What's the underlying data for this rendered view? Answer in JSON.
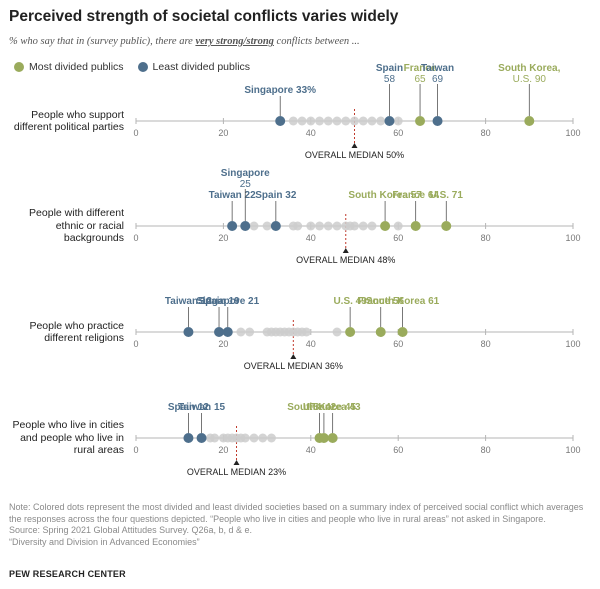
{
  "header": {
    "title": "Perceived strength of societal conflicts varies widely",
    "subtitle_pre": "% who say that in (survey public), there are ",
    "subtitle_em": "very strong/strong",
    "subtitle_post": " conflicts between ..."
  },
  "legend": {
    "most_label": "Most divided publics",
    "least_label": "Least divided publics"
  },
  "colors": {
    "most": "#9aab5c",
    "least": "#4e6f8c",
    "other": "#cccccc",
    "median_line": "#c0392b",
    "axis": "#999999"
  },
  "chart_data": {
    "type": "scatter",
    "xlim": [
      0,
      100
    ],
    "ticks": [
      0,
      20,
      40,
      60,
      80,
      100
    ],
    "median_label_prefix": "OVERALL MEDIAN",
    "rows": [
      {
        "label_lines": [
          "People who support",
          "different political parties"
        ],
        "median": 50,
        "median_label": "OVERALL MEDIAN 50%",
        "other": [
          33,
          36,
          38,
          40,
          42,
          44,
          46,
          48,
          50,
          52,
          54,
          56,
          60
        ],
        "highlights": [
          {
            "name": "Singapore",
            "value": 33,
            "group": "least",
            "label": "Singapore 33%"
          },
          {
            "name": "Spain",
            "value": 58,
            "group": "least",
            "label": "Spain",
            "label2": "58"
          },
          {
            "name": "France",
            "value": 65,
            "group": "most",
            "label": "France",
            "label2": "65"
          },
          {
            "name": "Taiwan",
            "value": 69,
            "group": "least",
            "label": "Taiwan",
            "label2": "69"
          },
          {
            "name": "South Korea",
            "value": 90,
            "group": "most",
            "label": "South Korea,",
            "label2": "U.S. 90"
          }
        ]
      },
      {
        "label_lines": [
          "People with different",
          "ethnic or racial",
          "backgrounds"
        ],
        "median": 48,
        "median_label": "OVERALL MEDIAN 48%",
        "other": [
          27,
          30,
          36,
          37,
          40,
          42,
          44,
          46,
          48,
          49,
          50,
          52,
          54,
          60
        ],
        "highlights": [
          {
            "name": "Taiwan",
            "value": 22,
            "group": "least",
            "label": "Taiwan 22"
          },
          {
            "name": "Singapore",
            "value": 25,
            "group": "least",
            "label": "Singapore",
            "label2": "25"
          },
          {
            "name": "Spain",
            "value": 32,
            "group": "least",
            "label": "Spain 32"
          },
          {
            "name": "South Korea",
            "value": 57,
            "group": "most",
            "label": "South Korea 57"
          },
          {
            "name": "France",
            "value": 64,
            "group": "most",
            "label": "France 64"
          },
          {
            "name": "U.S.",
            "value": 71,
            "group": "most",
            "label": "U.S. 71"
          }
        ]
      },
      {
        "label_lines": [
          "People who practice",
          "different religions"
        ],
        "median": 36,
        "median_label": "OVERALL MEDIAN 36%",
        "other": [
          24,
          26,
          30,
          31,
          32,
          33,
          34,
          35,
          36,
          37,
          38,
          39,
          46
        ],
        "highlights": [
          {
            "name": "Taiwan",
            "value": 12,
            "group": "least",
            "label": "Taiwan 12"
          },
          {
            "name": "Spain",
            "value": 19,
            "group": "least",
            "label": "Spain 19"
          },
          {
            "name": "Singapore",
            "value": 21,
            "group": "least",
            "label": "Singapore 21"
          },
          {
            "name": "U.S.",
            "value": 49,
            "group": "most",
            "label": "U.S. 49"
          },
          {
            "name": "France",
            "value": 56,
            "group": "most",
            "label": "France 56"
          },
          {
            "name": "South Korea",
            "value": 61,
            "group": "most",
            "label": "South Korea 61"
          }
        ]
      },
      {
        "label_lines": [
          "People who live in cities",
          "and people who live in",
          "rural areas"
        ],
        "median": 23,
        "median_label": "OVERALL MEDIAN 23%",
        "other": [
          17,
          18,
          20,
          21,
          22,
          23,
          24,
          25,
          27,
          29,
          31
        ],
        "highlights": [
          {
            "name": "Spain",
            "value": 12,
            "group": "least",
            "label": "Spain 12"
          },
          {
            "name": "Taiwan",
            "value": 15,
            "group": "least",
            "label": "Taiwan 15"
          },
          {
            "name": "U.S.",
            "value": 42,
            "group": "most",
            "label": "U.S. 42"
          },
          {
            "name": "South Korea",
            "value": 43,
            "group": "most",
            "label": "South Korea 43"
          },
          {
            "name": "France",
            "value": 45,
            "group": "most",
            "label": "France 45"
          }
        ]
      }
    ]
  },
  "footer": {
    "note": "Note: Colored dots represent the most divided and least divided societies based on a summary index of perceived social conflict which averages the responses across the four questions depicted. “People who live in cities and people who live in rural areas” not asked in Singapore.",
    "source": "Source: Spring 2021 Global Attitudes Survey. Q26a, b, d & e.",
    "report": "“Diversity and Division in Advanced Economies”",
    "org": "PEW RESEARCH CENTER"
  }
}
